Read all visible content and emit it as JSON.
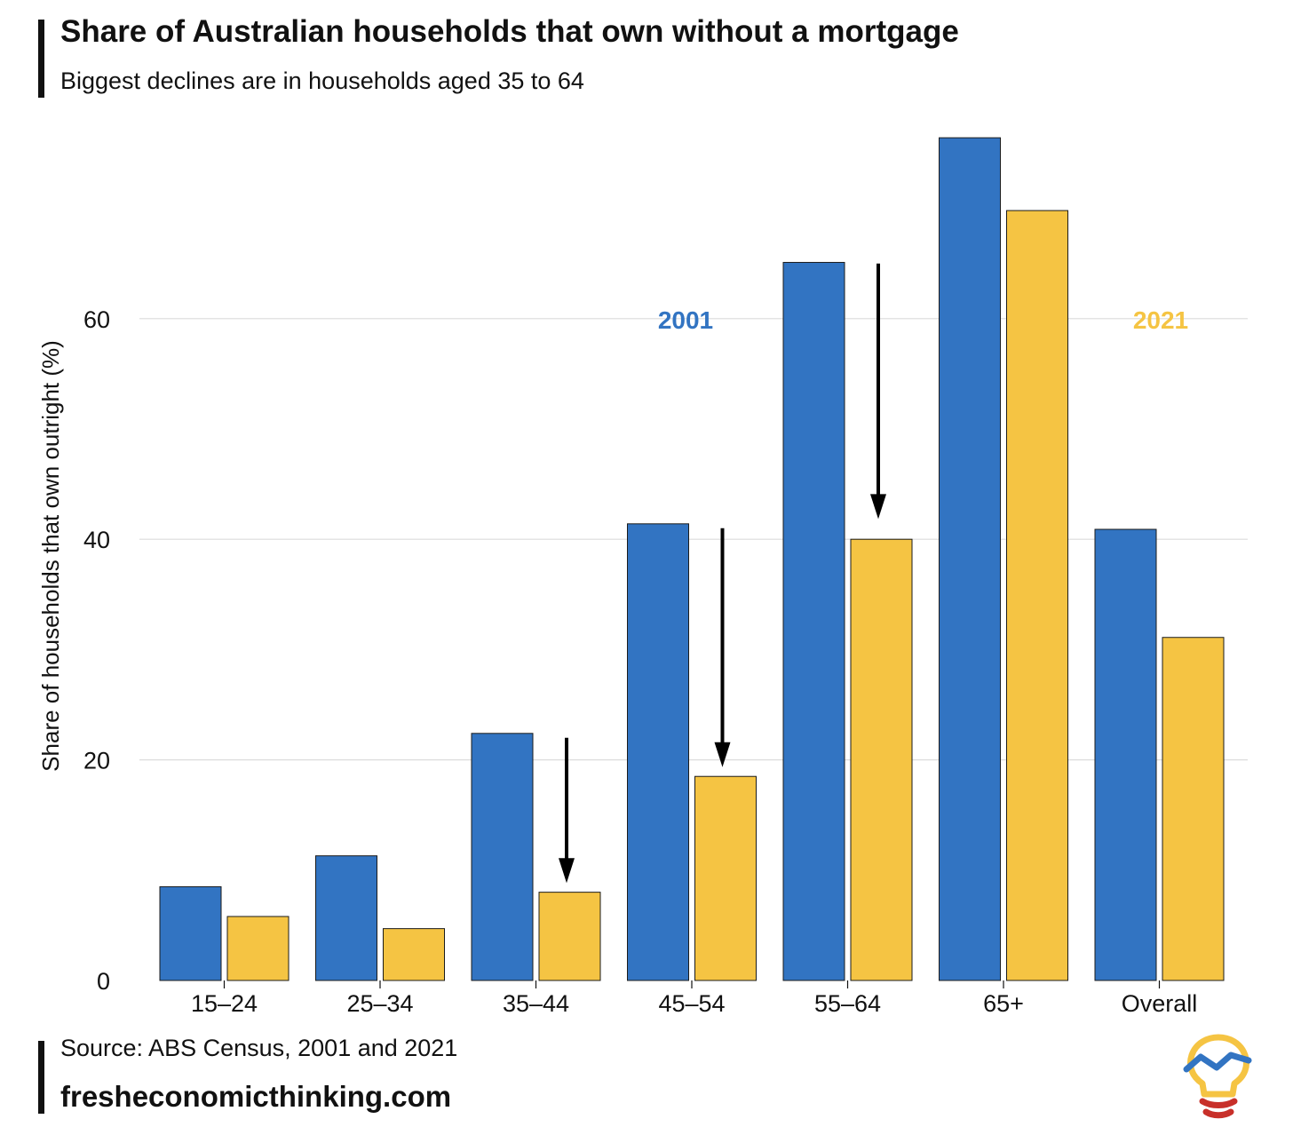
{
  "header": {
    "title": "Share of Australian households that own without a mortgage",
    "subtitle": "Biggest declines are in households aged 35 to 64"
  },
  "footer": {
    "source": "Source: ABS Census, 2001 and 2021",
    "site": "fresheconomicthinking.com"
  },
  "logo": {
    "icon": "lightbulb-chart-icon"
  },
  "chart_data": {
    "type": "bar",
    "title": "Share of Australian households that own without a mortgage",
    "subtitle": "Biggest declines are in households aged 35 to 64",
    "xlabel": "",
    "ylabel": "Share of households that own outright (%)",
    "ylim": [
      0,
      76
    ],
    "yticks": [
      0,
      20,
      40,
      60
    ],
    "grid": true,
    "categories": [
      "15–24",
      "25–34",
      "35–44",
      "45–54",
      "55–64",
      "65+",
      "Overall"
    ],
    "series": [
      {
        "name": "2001",
        "color": "#3274C2",
        "values": [
          8.5,
          11.3,
          22.4,
          41.4,
          65.1,
          76.4,
          40.9
        ]
      },
      {
        "name": "2021",
        "color": "#F5C443",
        "values": [
          5.8,
          4.7,
          8.0,
          18.5,
          40.0,
          69.8,
          31.1
        ]
      }
    ],
    "legend": {
      "position": "inline-labels",
      "labels": [
        "2001",
        "2021"
      ]
    },
    "annotations": [
      {
        "type": "arrow",
        "category": "35–44",
        "from": 22.0,
        "to": 9.0
      },
      {
        "type": "arrow",
        "category": "45–54",
        "from": 41.0,
        "to": 19.5
      },
      {
        "type": "arrow",
        "category": "55–64",
        "from": 65.0,
        "to": 42.0
      }
    ]
  }
}
